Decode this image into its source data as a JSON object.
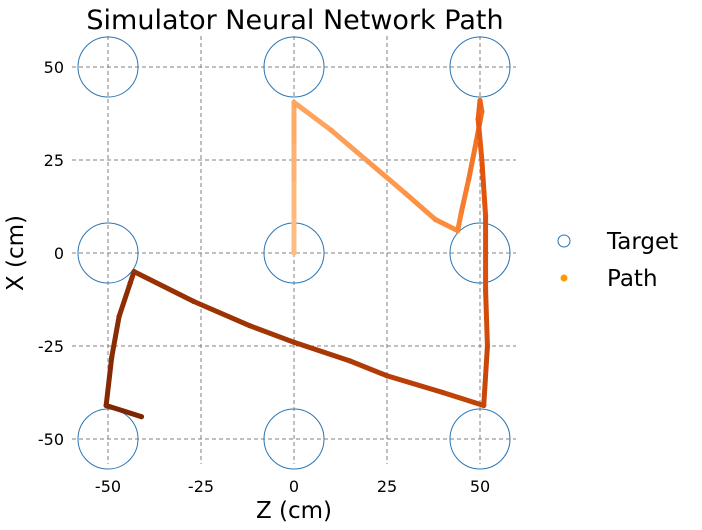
{
  "chart_data": {
    "type": "scatter",
    "title": "Simulator Neural Network Path",
    "xlabel": "Z (cm)",
    "ylabel": "X (cm)",
    "xlim": [
      -60,
      60
    ],
    "ylim": [
      -60,
      58
    ],
    "x_ticks": [
      -50,
      -25,
      0,
      25,
      50
    ],
    "y_ticks": [
      50,
      25,
      0,
      -25,
      -50
    ],
    "grid": true,
    "legend": {
      "placement": "right",
      "entries": [
        "Target",
        "Path"
      ]
    },
    "colors": {
      "target": "#2b75b4",
      "path_start": "#fdbe85",
      "path_end": "#7f2704",
      "legend_path": "#ff9900"
    },
    "series": [
      {
        "name": "Target",
        "points": [
          [
            -50,
            50
          ],
          [
            0,
            50
          ],
          [
            50,
            50
          ],
          [
            -50,
            0
          ],
          [
            0,
            0
          ],
          [
            50,
            0
          ],
          [
            -50,
            -50
          ],
          [
            0,
            -50
          ],
          [
            50,
            -50
          ]
        ]
      },
      {
        "name": "Path",
        "points": [
          [
            0,
            0
          ],
          [
            0,
            10
          ],
          [
            0,
            20
          ],
          [
            0,
            30
          ],
          [
            0,
            40.5
          ],
          [
            10,
            33
          ],
          [
            20,
            24.5
          ],
          [
            30,
            16
          ],
          [
            38,
            9
          ],
          [
            44,
            6
          ],
          [
            45,
            11
          ],
          [
            47,
            20
          ],
          [
            49,
            30
          ],
          [
            50.5,
            38
          ],
          [
            50,
            41
          ],
          [
            49.5,
            36
          ],
          [
            50.5,
            25
          ],
          [
            51.5,
            10
          ],
          [
            51.5,
            -10
          ],
          [
            52,
            -25
          ],
          [
            51,
            -41
          ],
          [
            40,
            -37.5
          ],
          [
            25,
            -33
          ],
          [
            15,
            -29
          ],
          [
            0,
            -24
          ],
          [
            -12,
            -19.5
          ],
          [
            -27,
            -13
          ],
          [
            -43,
            -5
          ],
          [
            -44,
            -8
          ],
          [
            -47,
            -17
          ],
          [
            -49,
            -28
          ],
          [
            -50.5,
            -41
          ],
          [
            -41,
            -44
          ]
        ]
      }
    ]
  }
}
